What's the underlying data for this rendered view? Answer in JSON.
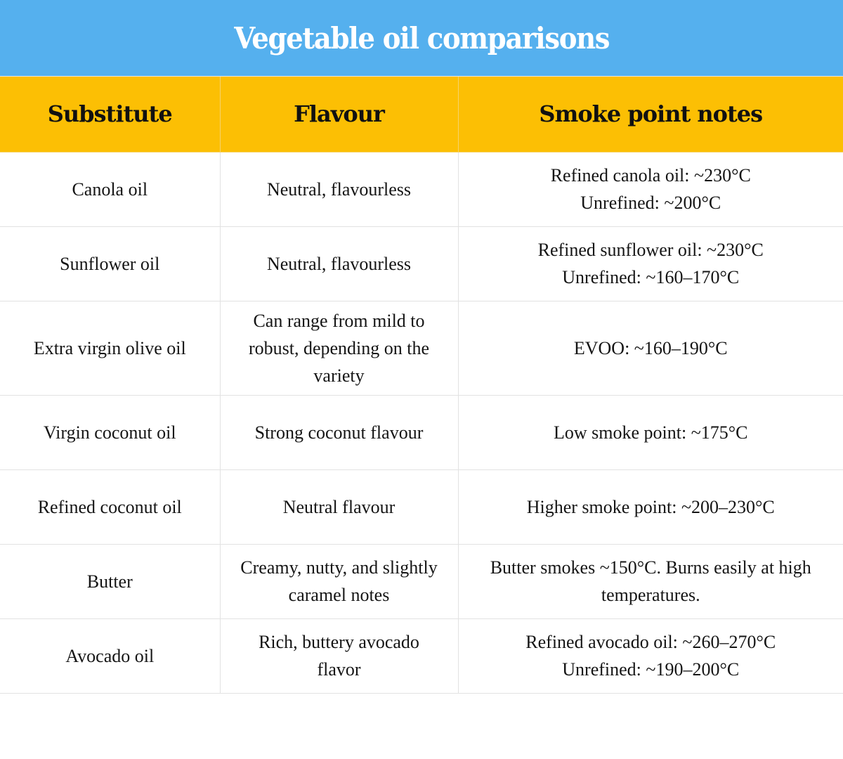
{
  "title": "Vegetable oil comparisons",
  "colors": {
    "title_background": "#55b0ee",
    "title_text": "#ffffff",
    "header_background": "#fcbf04",
    "header_text": "#111111",
    "grid_lines": "#e2e2e2",
    "body_background": "#ffffff"
  },
  "table": {
    "headers": [
      "Substitute",
      "Flavour",
      "Smoke point notes"
    ],
    "rows": [
      {
        "substitute": "Canola oil",
        "flavour": [
          "Neutral, flavourless"
        ],
        "smoke_point": [
          "Refined canola oil: ~230°C",
          "Unrefined: ~200°C"
        ]
      },
      {
        "substitute": "Sunflower oil",
        "flavour": [
          "Neutral, flavourless"
        ],
        "smoke_point": [
          "Refined sunflower oil: ~230°C",
          "Unrefined: ~160–170°C"
        ]
      },
      {
        "substitute": "Extra virgin olive oil",
        "flavour": [
          "Can range from mild to",
          "robust, depending on the",
          "variety"
        ],
        "smoke_point": [
          "EVOO: ~160–190°C"
        ]
      },
      {
        "substitute": "Virgin coconut oil",
        "flavour": [
          "Strong coconut flavour"
        ],
        "smoke_point": [
          "Low smoke point: ~175°C"
        ]
      },
      {
        "substitute": "Refined coconut oil",
        "flavour": [
          "Neutral flavour"
        ],
        "smoke_point": [
          "Higher smoke point: ~200–230°C"
        ]
      },
      {
        "substitute": "Butter",
        "flavour": [
          "Creamy, nutty, and slightly",
          "caramel notes"
        ],
        "smoke_point": [
          "Butter smokes ~150°C. Burns easily at high",
          "temperatures."
        ]
      },
      {
        "substitute": "Avocado oil",
        "flavour": [
          "Rich, buttery avocado",
          "flavor"
        ],
        "smoke_point": [
          "Refined avocado oil: ~260–270°C",
          "Unrefined: ~190–200°C"
        ]
      }
    ]
  }
}
